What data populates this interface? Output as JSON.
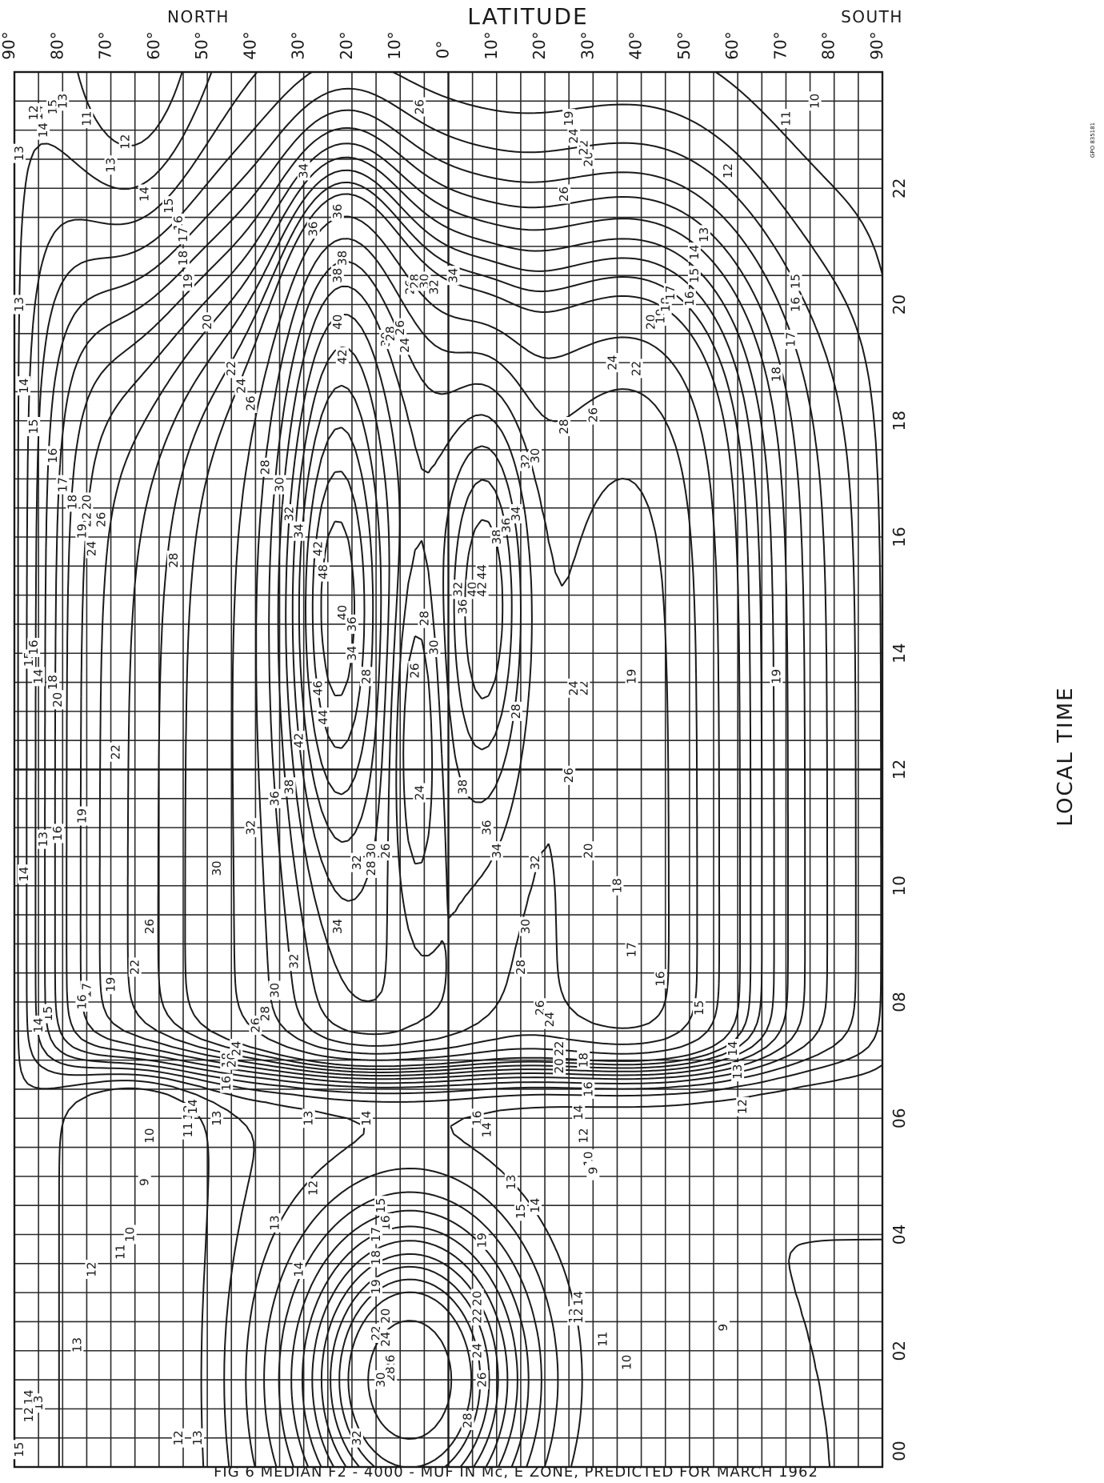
{
  "chart_data": {
    "type": "contour",
    "title": "FIG 6 MEDIAN F2 - 4000 - MUF IN Mc, E ZONE, PREDICTED FOR MARCH 1962",
    "top_axis_label": "LATITUDE",
    "top_axis_left_label": "NORTH",
    "top_axis_right_label": "SOUTH",
    "right_axis_label": "LOCAL TIME",
    "margin_note": "GPO 835181",
    "latitude_ticks": [
      "90°",
      "80°",
      "70°",
      "60°",
      "50°",
      "40°",
      "30°",
      "20°",
      "10°",
      "0°",
      "10°",
      "20°",
      "30°",
      "40°",
      "50°",
      "60°",
      "70°",
      "80°",
      "90°"
    ],
    "time_ticks": [
      "00",
      "02",
      "04",
      "06",
      "08",
      "10",
      "12",
      "14",
      "16",
      "18",
      "20",
      "22"
    ],
    "xlim": [
      -90,
      90
    ],
    "ylim": [
      0,
      24
    ],
    "contour_levels": [
      9,
      10,
      11,
      12,
      13,
      14,
      15,
      16,
      17,
      18,
      19,
      20,
      22,
      24,
      26,
      28,
      30,
      32,
      34,
      36,
      38,
      40,
      42,
      44,
      46,
      48
    ],
    "contour_labels": [
      {
        "v": "11",
        "lat": 75,
        "t": 23.2
      },
      {
        "v": "13",
        "lat": 70,
        "t": 22.4
      },
      {
        "v": "12",
        "lat": 67,
        "t": 22.8
      },
      {
        "v": "14",
        "lat": 63,
        "t": 21.9
      },
      {
        "v": "15",
        "lat": 58,
        "t": 21.7
      },
      {
        "v": "16",
        "lat": 56,
        "t": 21.4
      },
      {
        "v": "17",
        "lat": 55,
        "t": 21.2
      },
      {
        "v": "18",
        "lat": 55,
        "t": 20.8
      },
      {
        "v": "19",
        "lat": 54,
        "t": 20.4
      },
      {
        "v": "20",
        "lat": 50,
        "t": 19.7
      },
      {
        "v": "22",
        "lat": 45,
        "t": 18.9
      },
      {
        "v": "24",
        "lat": 43,
        "t": 18.6
      },
      {
        "v": "26",
        "lat": 41,
        "t": 18.3
      },
      {
        "v": "28",
        "lat": 38,
        "t": 17.2
      },
      {
        "v": "30",
        "lat": 35,
        "t": 16.9
      },
      {
        "v": "32",
        "lat": 33,
        "t": 16.4
      },
      {
        "v": "34",
        "lat": 31,
        "t": 16.1
      },
      {
        "v": "36",
        "lat": 23,
        "t": 21.6
      },
      {
        "v": "38",
        "lat": 23,
        "t": 20.5
      },
      {
        "v": "40",
        "lat": 23,
        "t": 19.7
      },
      {
        "v": "42",
        "lat": 22,
        "t": 19.1
      },
      {
        "v": "48",
        "lat": 26,
        "t": 15.4
      },
      {
        "v": "46",
        "lat": 27,
        "t": 13.4
      },
      {
        "v": "44",
        "lat": 26,
        "t": 12.9
      },
      {
        "v": "42",
        "lat": 27,
        "t": 15.8
      },
      {
        "v": "40",
        "lat": 22,
        "t": 14.7
      },
      {
        "v": "36",
        "lat": 20,
        "t": 14.5
      },
      {
        "v": "34",
        "lat": 20,
        "t": 14.0
      },
      {
        "v": "28",
        "lat": 17,
        "t": 13.6
      },
      {
        "v": "26",
        "lat": 7,
        "t": 13.7
      },
      {
        "v": "24",
        "lat": 6,
        "t": 11.6
      },
      {
        "v": "28",
        "lat": 5,
        "t": 14.6
      },
      {
        "v": "30",
        "lat": 3,
        "t": 14.1
      },
      {
        "v": "32",
        "lat": -2,
        "t": 15.1
      },
      {
        "v": "36",
        "lat": -3,
        "t": 14.8
      },
      {
        "v": "40",
        "lat": -5,
        "t": 15.1
      },
      {
        "v": "44",
        "lat": -7,
        "t": 15.4
      },
      {
        "v": "42",
        "lat": -7,
        "t": 15.1
      },
      {
        "v": "38",
        "lat": -10,
        "t": 16.0
      },
      {
        "v": "36",
        "lat": -12,
        "t": 16.2
      },
      {
        "v": "34",
        "lat": -14,
        "t": 16.4
      },
      {
        "v": "32",
        "lat": -16,
        "t": 17.3
      },
      {
        "v": "30",
        "lat": -18,
        "t": 17.4
      },
      {
        "v": "28",
        "lat": -24,
        "t": 17.9
      },
      {
        "v": "26",
        "lat": -30,
        "t": 18.1
      },
      {
        "v": "24",
        "lat": -34,
        "t": 19.0
      },
      {
        "v": "22",
        "lat": -39,
        "t": 18.9
      },
      {
        "v": "20",
        "lat": -42,
        "t": 19.7
      },
      {
        "v": "19",
        "lat": -44,
        "t": 19.8
      },
      {
        "v": "18",
        "lat": -45,
        "t": 20.0
      },
      {
        "v": "17",
        "lat": -46,
        "t": 20.2
      },
      {
        "v": "16",
        "lat": -50,
        "t": 20.1
      },
      {
        "v": "15",
        "lat": -51,
        "t": 20.5
      },
      {
        "v": "14",
        "lat": -51,
        "t": 20.9
      },
      {
        "v": "13",
        "lat": -53,
        "t": 21.2
      },
      {
        "v": "12",
        "lat": -58,
        "t": 22.3
      },
      {
        "v": "11",
        "lat": -70,
        "t": 23.2
      },
      {
        "v": "10",
        "lat": -76,
        "t": 23.5
      },
      {
        "v": "15",
        "lat": -72,
        "t": 20.4
      },
      {
        "v": "16",
        "lat": -72,
        "t": 20.0
      },
      {
        "v": "17",
        "lat": -71,
        "t": 19.4
      },
      {
        "v": "18",
        "lat": -68,
        "t": 18.8
      },
      {
        "v": "19",
        "lat": -68,
        "t": 13.6
      },
      {
        "v": "19",
        "lat": -38,
        "t": 13.6
      },
      {
        "v": "22",
        "lat": -28,
        "t": 13.4
      },
      {
        "v": "24",
        "lat": -26,
        "t": 13.4
      },
      {
        "v": "28",
        "lat": -14,
        "t": 13.0
      },
      {
        "v": "26",
        "lat": -25,
        "t": 11.9
      },
      {
        "v": "20",
        "lat": -29,
        "t": 10.6
      },
      {
        "v": "18",
        "lat": -35,
        "t": 10.0
      },
      {
        "v": "17",
        "lat": -38,
        "t": 8.9
      },
      {
        "v": "16",
        "lat": -44,
        "t": 8.4
      },
      {
        "v": "15",
        "lat": -52,
        "t": 7.9
      },
      {
        "v": "14",
        "lat": -59,
        "t": 7.2
      },
      {
        "v": "13",
        "lat": -60,
        "t": 6.8
      },
      {
        "v": "12",
        "lat": -61,
        "t": 6.2
      },
      {
        "v": "30",
        "lat": -16,
        "t": 9.3
      },
      {
        "v": "32",
        "lat": -18,
        "t": 10.4
      },
      {
        "v": "34",
        "lat": -10,
        "t": 10.6
      },
      {
        "v": "36",
        "lat": -8,
        "t": 11.0
      },
      {
        "v": "38",
        "lat": -3,
        "t": 11.7
      },
      {
        "v": "28",
        "lat": -15,
        "t": 8.6
      },
      {
        "v": "26",
        "lat": -19,
        "t": 7.9
      },
      {
        "v": "24",
        "lat": -21,
        "t": 7.7
      },
      {
        "v": "22",
        "lat": -23,
        "t": 7.2
      },
      {
        "v": "20",
        "lat": -23,
        "t": 6.9
      },
      {
        "v": "18",
        "lat": -28,
        "t": 7.0
      },
      {
        "v": "16",
        "lat": -29,
        "t": 6.5
      },
      {
        "v": "14",
        "lat": -27,
        "t": 6.1
      },
      {
        "v": "12",
        "lat": -28,
        "t": 5.7
      },
      {
        "v": "10",
        "lat": -29,
        "t": 5.3
      },
      {
        "v": "9",
        "lat": -30,
        "t": 5.1
      },
      {
        "v": "16",
        "lat": -6,
        "t": 6.0
      },
      {
        "v": "14",
        "lat": -8,
        "t": 5.8
      },
      {
        "v": "13",
        "lat": -13,
        "t": 4.9
      },
      {
        "v": "14",
        "lat": -18,
        "t": 4.5
      },
      {
        "v": "15",
        "lat": -15,
        "t": 4.4
      },
      {
        "v": "19",
        "lat": -7,
        "t": 3.9
      },
      {
        "v": "20",
        "lat": -6,
        "t": 2.9
      },
      {
        "v": "22",
        "lat": -6,
        "t": 2.6
      },
      {
        "v": "24",
        "lat": -6,
        "t": 2.0
      },
      {
        "v": "26",
        "lat": -7,
        "t": 1.5
      },
      {
        "v": "28",
        "lat": -4,
        "t": 0.8
      },
      {
        "v": "14",
        "lat": -27,
        "t": 2.9
      },
      {
        "v": "13",
        "lat": -26,
        "t": 2.6
      },
      {
        "v": "12",
        "lat": -27,
        "t": 2.6
      },
      {
        "v": "11",
        "lat": -32,
        "t": 2.2
      },
      {
        "v": "10",
        "lat": -37,
        "t": 1.8
      },
      {
        "v": "9",
        "lat": -57,
        "t": 2.4
      },
      {
        "v": "15",
        "lat": 14,
        "t": 4.5
      },
      {
        "v": "16",
        "lat": 13,
        "t": 4.2
      },
      {
        "v": "17",
        "lat": 15,
        "t": 4.0
      },
      {
        "v": "18",
        "lat": 15,
        "t": 3.6
      },
      {
        "v": "19",
        "lat": 15,
        "t": 3.1
      },
      {
        "v": "20",
        "lat": 13,
        "t": 2.6
      },
      {
        "v": "22",
        "lat": 15,
        "t": 2.3
      },
      {
        "v": "24",
        "lat": 13,
        "t": 2.2
      },
      {
        "v": "26",
        "lat": 12,
        "t": 1.8
      },
      {
        "v": "28",
        "lat": 12,
        "t": 1.6
      },
      {
        "v": "30",
        "lat": 14,
        "t": 1.5
      },
      {
        "v": "32",
        "lat": 19,
        "t": 0.5
      },
      {
        "v": "14",
        "lat": 31,
        "t": 3.4
      },
      {
        "v": "13",
        "lat": 36,
        "t": 4.2
      },
      {
        "v": "12",
        "lat": 28,
        "t": 4.8
      },
      {
        "v": "13",
        "lat": 29,
        "t": 6.0
      },
      {
        "v": "14",
        "lat": 17,
        "t": 6.0
      },
      {
        "v": "10",
        "lat": 62,
        "t": 5.7
      },
      {
        "v": "9",
        "lat": 63,
        "t": 4.9
      },
      {
        "v": "10",
        "lat": 66,
        "t": 4.0
      },
      {
        "v": "11",
        "lat": 68,
        "t": 3.7
      },
      {
        "v": "12",
        "lat": 74,
        "t": 3.4
      },
      {
        "v": "11",
        "lat": 54,
        "t": 5.8
      },
      {
        "v": "12",
        "lat": 54,
        "t": 6.1
      },
      {
        "v": "14",
        "lat": 53,
        "t": 6.2
      },
      {
        "v": "13",
        "lat": 48,
        "t": 6.0
      },
      {
        "v": "16",
        "lat": 46,
        "t": 6.6
      },
      {
        "v": "18",
        "lat": 46,
        "t": 7.0
      },
      {
        "v": "20",
        "lat": 45,
        "t": 7.0
      },
      {
        "v": "24",
        "lat": 44,
        "t": 7.2
      },
      {
        "v": "26",
        "lat": 40,
        "t": 7.6
      },
      {
        "v": "28",
        "lat": 38,
        "t": 7.8
      },
      {
        "v": "30",
        "lat": 36,
        "t": 8.2
      },
      {
        "v": "32",
        "lat": 32,
        "t": 8.7
      },
      {
        "v": "34",
        "lat": 23,
        "t": 9.3
      },
      {
        "v": "32",
        "lat": 19,
        "t": 10.4
      },
      {
        "v": "30",
        "lat": 16,
        "t": 10.6
      },
      {
        "v": "28",
        "lat": 16,
        "t": 10.3
      },
      {
        "v": "26",
        "lat": 13,
        "t": 10.6
      },
      {
        "v": "38",
        "lat": 33,
        "t": 11.7
      },
      {
        "v": "36",
        "lat": 36,
        "t": 11.5
      },
      {
        "v": "42",
        "lat": 31,
        "t": 12.5
      },
      {
        "v": "30",
        "lat": 48,
        "t": 10.3
      },
      {
        "v": "32",
        "lat": 41,
        "t": 11.0
      },
      {
        "v": "26",
        "lat": 62,
        "t": 9.3
      },
      {
        "v": "22",
        "lat": 65,
        "t": 8.6
      },
      {
        "v": "19",
        "lat": 70,
        "t": 8.3
      },
      {
        "v": "17",
        "lat": 75,
        "t": 8.2
      },
      {
        "v": "16",
        "lat": 76,
        "t": 8.0
      },
      {
        "v": "15",
        "lat": 83,
        "t": 7.8
      },
      {
        "v": "14",
        "lat": 85,
        "t": 7.6
      },
      {
        "v": "19",
        "lat": 76,
        "t": 11.2
      },
      {
        "v": "16",
        "lat": 81,
        "t": 10.9
      },
      {
        "v": "13",
        "lat": 84,
        "t": 10.8
      },
      {
        "v": "14",
        "lat": 88,
        "t": 10.2
      },
      {
        "v": "22",
        "lat": 69,
        "t": 12.3
      },
      {
        "v": "20",
        "lat": 81,
        "t": 13.2
      },
      {
        "v": "18",
        "lat": 82,
        "t": 13.5
      },
      {
        "v": "14",
        "lat": 85,
        "t": 13.6
      },
      {
        "v": "15",
        "lat": 87,
        "t": 13.9
      },
      {
        "v": "16",
        "lat": 86,
        "t": 14.1
      },
      {
        "v": "28",
        "lat": 57,
        "t": 15.6
      },
      {
        "v": "24",
        "lat": 74,
        "t": 15.8
      },
      {
        "v": "22",
        "lat": 75,
        "t": 16.3
      },
      {
        "v": "26",
        "lat": 72,
        "t": 16.3
      },
      {
        "v": "20",
        "lat": 75,
        "t": 16.6
      },
      {
        "v": "19",
        "lat": 76,
        "t": 16.1
      },
      {
        "v": "18",
        "lat": 78,
        "t": 16.6
      },
      {
        "v": "17",
        "lat": 80,
        "t": 16.9
      },
      {
        "v": "16",
        "lat": 82,
        "t": 17.4
      },
      {
        "v": "15",
        "lat": 86,
        "t": 17.9
      },
      {
        "v": "14",
        "lat": 88,
        "t": 18.6
      },
      {
        "v": "13",
        "lat": 89,
        "t": 20.0
      },
      {
        "v": "13",
        "lat": 89,
        "t": 22.6
      },
      {
        "v": "14",
        "lat": 85,
        "t": 23.3
      },
      {
        "v": "15",
        "lat": 82,
        "t": 23.4
      },
      {
        "v": "13",
        "lat": 80,
        "t": 23.5
      },
      {
        "v": "12",
        "lat": 86,
        "t": 23.3
      },
      {
        "v": "14",
        "lat": 84,
        "t": 23.0
      },
      {
        "v": "14",
        "lat": 87,
        "t": 1.2
      },
      {
        "v": "13",
        "lat": 85,
        "t": 1.1
      },
      {
        "v": "12",
        "lat": 87,
        "t": 0.9
      },
      {
        "v": "15",
        "lat": 89,
        "t": 0.3
      },
      {
        "v": "13",
        "lat": 77,
        "t": 2.1
      },
      {
        "v": "12",
        "lat": 56,
        "t": 0.5
      },
      {
        "v": "13",
        "lat": 52,
        "t": 0.5
      },
      {
        "v": "30",
        "lat": 13,
        "t": 19.4
      },
      {
        "v": "28",
        "lat": 12,
        "t": 19.5
      },
      {
        "v": "26",
        "lat": 10,
        "t": 19.6
      },
      {
        "v": "24",
        "lat": 9,
        "t": 19.3
      },
      {
        "v": "26",
        "lat": 8,
        "t": 20.3
      },
      {
        "v": "28",
        "lat": 7,
        "t": 20.4
      },
      {
        "v": "30",
        "lat": 5,
        "t": 20.4
      },
      {
        "v": "32",
        "lat": 3,
        "t": 20.3
      },
      {
        "v": "34",
        "lat": -1,
        "t": 20.5
      },
      {
        "v": "26",
        "lat": 6,
        "t": 23.4
      },
      {
        "v": "19",
        "lat": -25,
        "t": 23.2
      },
      {
        "v": "20",
        "lat": -29,
        "t": 22.5
      },
      {
        "v": "22",
        "lat": -28,
        "t": 22.7
      },
      {
        "v": "24",
        "lat": -26,
        "t": 22.9
      },
      {
        "v": "26",
        "lat": -24,
        "t": 21.9
      },
      {
        "v": "34",
        "lat": 30,
        "t": 22.3
      },
      {
        "v": "36",
        "lat": 28,
        "t": 21.3
      },
      {
        "v": "38",
        "lat": 22,
        "t": 20.8
      }
    ]
  }
}
